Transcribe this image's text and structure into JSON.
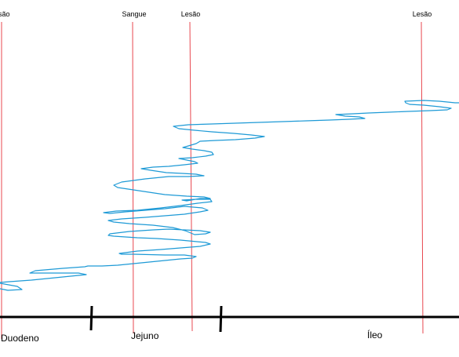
{
  "markers": [
    {
      "label": "são",
      "color": "#e8474f"
    },
    {
      "label": "Sangue",
      "color": "#e8474f"
    },
    {
      "label": "Lesão",
      "color": "#e8474f"
    },
    {
      "label": "Lesão",
      "color": "#e8474f"
    }
  ],
  "regions": [
    "Duodeno",
    "Jejuno",
    "Íleo"
  ],
  "colors": {
    "trace": "#1e9ad6",
    "axis": "#000000",
    "marker": "#e8474f"
  }
}
